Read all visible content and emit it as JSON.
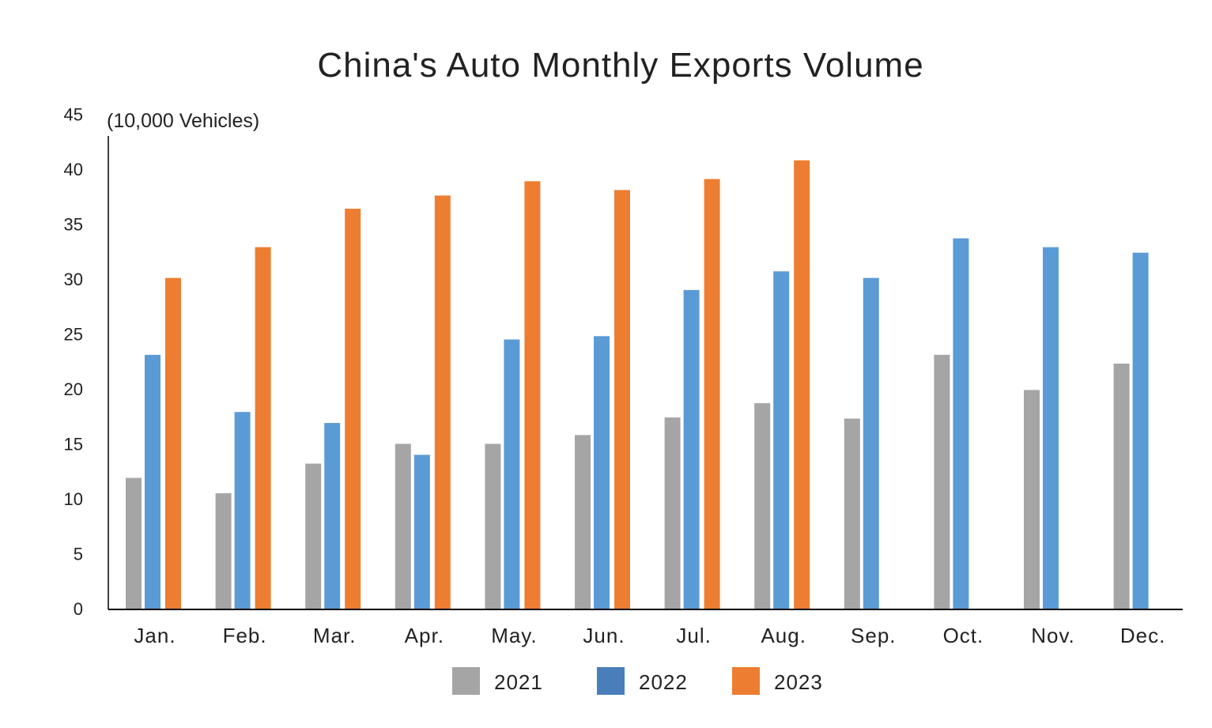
{
  "chart_data": {
    "type": "bar",
    "title": "China's Auto Monthly Exports Volume",
    "ylabel": "(10,000 Vehicles)",
    "xlabel": "",
    "ylim": [
      0,
      45
    ],
    "yticks": [
      0,
      5,
      10,
      15,
      20,
      25,
      30,
      35,
      40,
      45
    ],
    "grid": false,
    "legend_position": "bottom",
    "categories": [
      "Jan.",
      "Feb.",
      "Mar.",
      "Apr.",
      "May.",
      "Jun.",
      "Jul.",
      "Aug.",
      "Sep.",
      "Oct.",
      "Nov.",
      "Dec."
    ],
    "series": [
      {
        "name": "2021",
        "color": "#a5a5a5",
        "legend_color": "#a5a5a5",
        "values": [
          11.9,
          10.5,
          13.2,
          15.0,
          15.0,
          15.8,
          17.4,
          18.7,
          17.3,
          23.1,
          19.9,
          22.3
        ]
      },
      {
        "name": "2022",
        "color": "#5b9bd5",
        "legend_color": "#4a7ebb",
        "values": [
          23.1,
          17.9,
          16.9,
          14.0,
          24.5,
          24.8,
          29.0,
          30.7,
          30.1,
          33.7,
          32.9,
          32.4
        ]
      },
      {
        "name": "2023",
        "color": "#ed7d31",
        "legend_color": "#ed7d31",
        "values": [
          30.1,
          32.9,
          36.4,
          37.6,
          38.9,
          38.1,
          39.1,
          40.8,
          null,
          null,
          null,
          null
        ]
      }
    ]
  }
}
